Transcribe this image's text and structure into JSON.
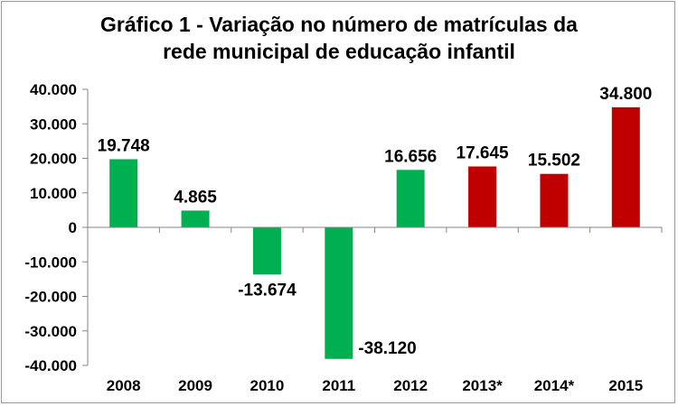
{
  "chart_data": {
    "type": "bar",
    "title_line1": "Gráfico 1 - Variação no número de matrículas da",
    "title_line2": "rede municipal de educação infantil",
    "categories": [
      "2008",
      "2009",
      "2010",
      "2011",
      "2012",
      "2013*",
      "2014*",
      "2015"
    ],
    "values": [
      19748,
      4865,
      -13674,
      -38120,
      16656,
      17645,
      15502,
      34800
    ],
    "data_labels": [
      "19.748",
      "4.865",
      "-13.674",
      "-38.120",
      "16.656",
      "17.645",
      "15.502",
      "34.800"
    ],
    "bar_colors": [
      "#00b050",
      "#00b050",
      "#00b050",
      "#00b050",
      "#00b050",
      "#c00000",
      "#c00000",
      "#c00000"
    ],
    "ylim": [
      -40000,
      40000
    ],
    "yticks": [
      40000,
      30000,
      20000,
      10000,
      0,
      -10000,
      -20000,
      -30000,
      -40000
    ],
    "ytick_labels": [
      "40.000",
      "30.000",
      "20.000",
      "10.000",
      "0",
      "-10.000",
      "-20.000",
      "-30.000",
      "-40.000"
    ],
    "grid": false,
    "legend": "none"
  }
}
